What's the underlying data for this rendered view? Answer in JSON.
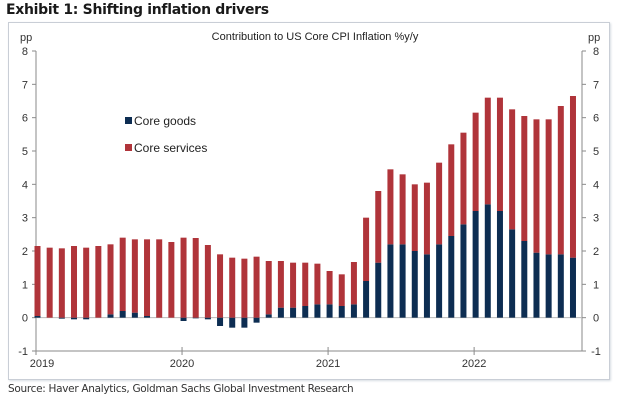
{
  "exhibit_title": "Exhibit 1: Shifting inflation drivers",
  "source": "Source: Haver Analytics, Goldman Sachs Global Investment Research",
  "colors": {
    "goods": "#0d2d52",
    "services": "#b0343a",
    "axis": "#8a8a8a"
  },
  "chart_data": {
    "type": "bar",
    "stacked": true,
    "title": "Contribution  to US  Core  CPI  Inflation  %y/y",
    "ylabel_left": "pp",
    "ylabel_right": "pp",
    "ylim": [
      -1,
      8
    ],
    "yticks": [
      -1,
      0,
      1,
      2,
      3,
      4,
      5,
      6,
      7,
      8
    ],
    "xtick_labels": [
      "2019",
      "2020",
      "2021",
      "2022"
    ],
    "legend": {
      "position": "upper-left",
      "entries": [
        "Core goods",
        "Core services"
      ]
    },
    "categories": [
      "2019-01",
      "2019-02",
      "2019-03",
      "2019-04",
      "2019-05",
      "2019-06",
      "2019-07",
      "2019-08",
      "2019-09",
      "2019-10",
      "2019-11",
      "2019-12",
      "2020-01",
      "2020-02",
      "2020-03",
      "2020-04",
      "2020-05",
      "2020-06",
      "2020-07",
      "2020-08",
      "2020-09",
      "2020-10",
      "2020-11",
      "2020-12",
      "2021-01",
      "2021-02",
      "2021-03",
      "2021-04",
      "2021-05",
      "2021-06",
      "2021-07",
      "2021-08",
      "2021-09",
      "2021-10",
      "2021-11",
      "2021-12",
      "2022-01",
      "2022-02",
      "2022-03",
      "2022-04",
      "2022-05",
      "2022-06",
      "2022-07",
      "2022-08",
      "2022-09"
    ],
    "series": [
      {
        "name": "Core goods",
        "values": [
          0.05,
          0.0,
          -0.03,
          -0.05,
          -0.05,
          0.0,
          0.1,
          0.2,
          0.15,
          0.05,
          0.0,
          0.0,
          -0.1,
          -0.02,
          -0.05,
          -0.25,
          -0.3,
          -0.3,
          -0.15,
          0.1,
          0.3,
          0.3,
          0.35,
          0.4,
          0.4,
          0.35,
          0.4,
          1.1,
          1.65,
          2.2,
          2.2,
          2.0,
          1.9,
          2.2,
          2.45,
          2.8,
          3.2,
          3.4,
          3.2,
          2.65,
          2.3,
          1.95,
          1.9,
          1.9,
          1.8
        ]
      },
      {
        "name": "Core services",
        "values": [
          2.1,
          2.1,
          2.08,
          2.15,
          2.1,
          2.15,
          2.1,
          2.2,
          2.2,
          2.3,
          2.35,
          2.27,
          2.4,
          2.39,
          2.18,
          1.9,
          1.8,
          1.77,
          1.83,
          1.6,
          1.4,
          1.35,
          1.3,
          1.22,
          1.0,
          0.95,
          1.27,
          1.9,
          2.15,
          2.25,
          2.1,
          2.0,
          2.15,
          2.45,
          2.75,
          2.75,
          2.95,
          3.2,
          3.4,
          3.6,
          3.75,
          4.0,
          4.05,
          4.45,
          4.85
        ]
      }
    ],
    "totals": [
      2.15,
      2.1,
      2.05,
      2.1,
      2.05,
      2.15,
      2.2,
      2.4,
      2.35,
      2.35,
      2.35,
      2.27,
      2.3,
      2.37,
      2.13,
      1.65,
      1.5,
      1.47,
      1.68,
      1.7,
      1.7,
      1.65,
      1.65,
      1.62,
      1.4,
      1.3,
      1.67,
      3.0,
      3.8,
      4.45,
      4.3,
      4.0,
      4.05,
      4.65,
      5.2,
      5.55,
      6.15,
      6.6,
      6.6,
      6.25,
      6.05,
      5.95,
      5.95,
      6.35,
      6.65
    ]
  }
}
